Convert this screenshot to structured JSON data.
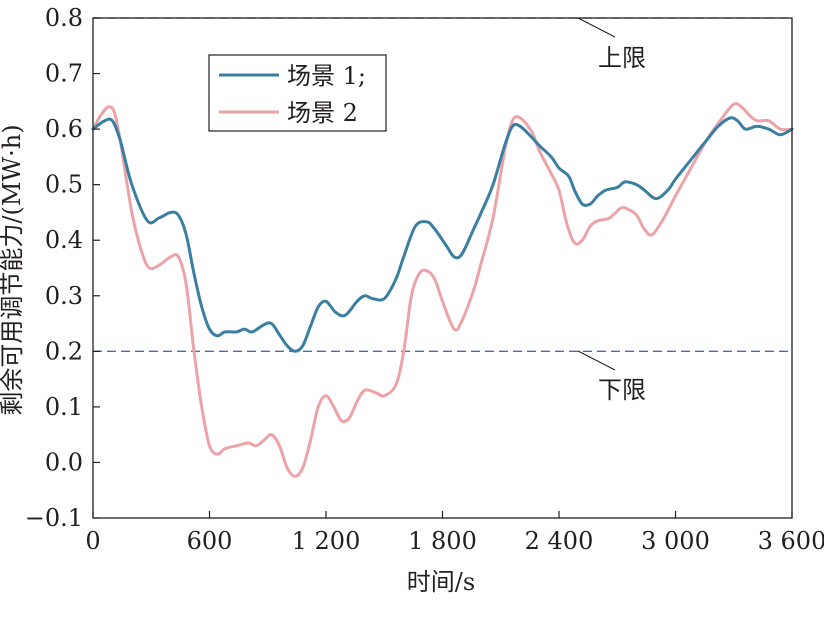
{
  "chart_data": {
    "type": "line",
    "xlabel": "时间/s",
    "ylabel": "剩余可用调节能力/(MW·h)",
    "xlim": [
      0,
      3600
    ],
    "ylim": [
      -0.1,
      0.8
    ],
    "xticks": [
      0,
      600,
      1200,
      1800,
      2400,
      3000,
      3600
    ],
    "xtick_labels": [
      "0",
      "600",
      "1 200",
      "1 800",
      "2 400",
      "3 000",
      "3 600"
    ],
    "yticks": [
      -0.1,
      0.0,
      0.1,
      0.2,
      0.3,
      0.4,
      0.5,
      0.6,
      0.7,
      0.8
    ],
    "ytick_labels": [
      "−0.1",
      "0.0",
      "0.1",
      "0.2",
      "0.3",
      "0.4",
      "0.5",
      "0.6",
      "0.7",
      "0.8"
    ],
    "grid": false,
    "legend_position": "top-left",
    "limits": [
      {
        "name": "上限",
        "value": 0.8,
        "color": "#4a6fa5"
      },
      {
        "name": "下限",
        "value": 0.2,
        "color": "#4a6fa5"
      }
    ],
    "series": [
      {
        "name": "场景 1;",
        "color": "#3a7ea1",
        "points": [
          [
            0,
            0.6
          ],
          [
            60,
            0.615
          ],
          [
            100,
            0.615
          ],
          [
            140,
            0.58
          ],
          [
            200,
            0.5
          ],
          [
            280,
            0.435
          ],
          [
            340,
            0.44
          ],
          [
            400,
            0.45
          ],
          [
            440,
            0.445
          ],
          [
            480,
            0.41
          ],
          [
            520,
            0.34
          ],
          [
            560,
            0.28
          ],
          [
            600,
            0.24
          ],
          [
            640,
            0.228
          ],
          [
            680,
            0.235
          ],
          [
            740,
            0.235
          ],
          [
            780,
            0.24
          ],
          [
            820,
            0.235
          ],
          [
            880,
            0.248
          ],
          [
            920,
            0.25
          ],
          [
            960,
            0.23
          ],
          [
            1000,
            0.21
          ],
          [
            1040,
            0.2
          ],
          [
            1080,
            0.21
          ],
          [
            1120,
            0.245
          ],
          [
            1160,
            0.28
          ],
          [
            1200,
            0.29
          ],
          [
            1250,
            0.27
          ],
          [
            1300,
            0.265
          ],
          [
            1360,
            0.29
          ],
          [
            1400,
            0.3
          ],
          [
            1440,
            0.295
          ],
          [
            1500,
            0.295
          ],
          [
            1560,
            0.33
          ],
          [
            1600,
            0.37
          ],
          [
            1660,
            0.425
          ],
          [
            1720,
            0.433
          ],
          [
            1760,
            0.42
          ],
          [
            1820,
            0.39
          ],
          [
            1860,
            0.37
          ],
          [
            1900,
            0.375
          ],
          [
            1960,
            0.42
          ],
          [
            2000,
            0.45
          ],
          [
            2060,
            0.5
          ],
          [
            2120,
            0.57
          ],
          [
            2160,
            0.605
          ],
          [
            2200,
            0.605
          ],
          [
            2260,
            0.585
          ],
          [
            2300,
            0.57
          ],
          [
            2360,
            0.55
          ],
          [
            2400,
            0.53
          ],
          [
            2450,
            0.515
          ],
          [
            2480,
            0.49
          ],
          [
            2520,
            0.465
          ],
          [
            2560,
            0.465
          ],
          [
            2600,
            0.48
          ],
          [
            2640,
            0.49
          ],
          [
            2700,
            0.495
          ],
          [
            2740,
            0.505
          ],
          [
            2800,
            0.5
          ],
          [
            2840,
            0.49
          ],
          [
            2900,
            0.475
          ],
          [
            2960,
            0.49
          ],
          [
            3000,
            0.51
          ],
          [
            3080,
            0.545
          ],
          [
            3160,
            0.58
          ],
          [
            3220,
            0.605
          ],
          [
            3280,
            0.62
          ],
          [
            3320,
            0.615
          ],
          [
            3360,
            0.6
          ],
          [
            3420,
            0.605
          ],
          [
            3480,
            0.6
          ],
          [
            3540,
            0.59
          ],
          [
            3600,
            0.6
          ]
        ]
      },
      {
        "name": "场景 2",
        "color": "#eba3a8",
        "points": [
          [
            0,
            0.6
          ],
          [
            40,
            0.625
          ],
          [
            80,
            0.64
          ],
          [
            110,
            0.63
          ],
          [
            140,
            0.58
          ],
          [
            200,
            0.45
          ],
          [
            250,
            0.38
          ],
          [
            290,
            0.35
          ],
          [
            340,
            0.355
          ],
          [
            400,
            0.37
          ],
          [
            440,
            0.37
          ],
          [
            480,
            0.32
          ],
          [
            520,
            0.2
          ],
          [
            560,
            0.1
          ],
          [
            600,
            0.03
          ],
          [
            640,
            0.015
          ],
          [
            680,
            0.025
          ],
          [
            740,
            0.03
          ],
          [
            800,
            0.035
          ],
          [
            840,
            0.03
          ],
          [
            880,
            0.04
          ],
          [
            920,
            0.05
          ],
          [
            960,
            0.03
          ],
          [
            1000,
            -0.01
          ],
          [
            1040,
            -0.025
          ],
          [
            1080,
            -0.01
          ],
          [
            1120,
            0.04
          ],
          [
            1160,
            0.1
          ],
          [
            1200,
            0.12
          ],
          [
            1240,
            0.1
          ],
          [
            1280,
            0.075
          ],
          [
            1320,
            0.08
          ],
          [
            1360,
            0.11
          ],
          [
            1400,
            0.13
          ],
          [
            1460,
            0.125
          ],
          [
            1500,
            0.12
          ],
          [
            1560,
            0.14
          ],
          [
            1600,
            0.2
          ],
          [
            1640,
            0.3
          ],
          [
            1680,
            0.34
          ],
          [
            1720,
            0.345
          ],
          [
            1760,
            0.33
          ],
          [
            1800,
            0.29
          ],
          [
            1860,
            0.24
          ],
          [
            1900,
            0.255
          ],
          [
            1960,
            0.31
          ],
          [
            2000,
            0.36
          ],
          [
            2060,
            0.44
          ],
          [
            2120,
            0.56
          ],
          [
            2160,
            0.615
          ],
          [
            2200,
            0.62
          ],
          [
            2260,
            0.595
          ],
          [
            2300,
            0.56
          ],
          [
            2360,
            0.52
          ],
          [
            2400,
            0.49
          ],
          [
            2440,
            0.43
          ],
          [
            2480,
            0.395
          ],
          [
            2520,
            0.4
          ],
          [
            2560,
            0.425
          ],
          [
            2600,
            0.435
          ],
          [
            2660,
            0.44
          ],
          [
            2720,
            0.458
          ],
          [
            2760,
            0.455
          ],
          [
            2800,
            0.445
          ],
          [
            2840,
            0.42
          ],
          [
            2880,
            0.41
          ],
          [
            2940,
            0.44
          ],
          [
            3000,
            0.48
          ],
          [
            3080,
            0.53
          ],
          [
            3160,
            0.58
          ],
          [
            3240,
            0.62
          ],
          [
            3300,
            0.645
          ],
          [
            3340,
            0.64
          ],
          [
            3380,
            0.625
          ],
          [
            3420,
            0.615
          ],
          [
            3480,
            0.615
          ],
          [
            3540,
            0.6
          ],
          [
            3600,
            0.6
          ]
        ]
      }
    ]
  }
}
